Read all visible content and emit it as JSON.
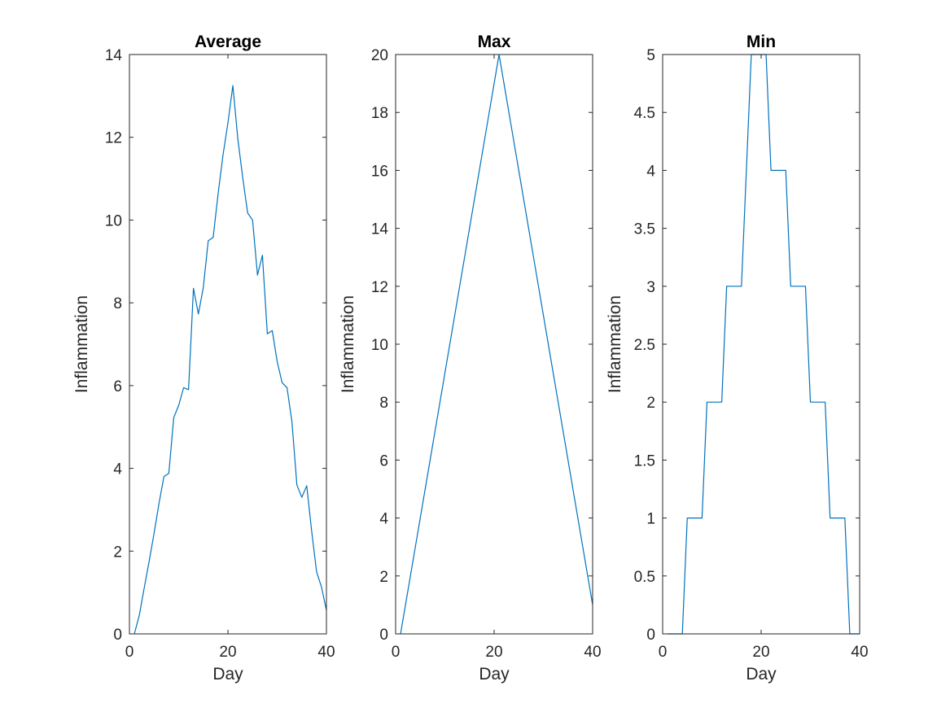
{
  "chart_data": [
    {
      "type": "line",
      "title": "Average",
      "xlabel": "Day",
      "ylabel": "Inflammation",
      "xlim": [
        0,
        40
      ],
      "ylim": [
        0,
        14
      ],
      "xticks": [
        "0",
        "20",
        "40"
      ],
      "yticks": [
        "0",
        "2",
        "4",
        "6",
        "8",
        "10",
        "12",
        "14"
      ],
      "grid": false,
      "color": "#0072BD",
      "series": [
        {
          "x": [
            1,
            2,
            3,
            4,
            5,
            6,
            7,
            8,
            9,
            10,
            11,
            12,
            13,
            14,
            15,
            16,
            17,
            18,
            19,
            20,
            21,
            22,
            23,
            24,
            25,
            26,
            27,
            28,
            29,
            30,
            31,
            32,
            33,
            34,
            35,
            36,
            37,
            38,
            39,
            40
          ],
          "values": [
            0,
            0.45,
            1.11,
            1.75,
            2.43,
            3.15,
            3.8,
            3.88,
            5.23,
            5.52,
            5.95,
            5.9,
            8.35,
            7.73,
            8.37,
            9.5,
            9.58,
            10.63,
            11.57,
            12.35,
            13.25,
            11.97,
            11.03,
            10.17,
            10.0,
            8.67,
            9.15,
            7.25,
            7.33,
            6.58,
            6.07,
            5.95,
            5.12,
            3.6,
            3.3,
            3.58,
            2.48,
            1.5,
            1.13,
            0.57
          ]
        }
      ]
    },
    {
      "type": "line",
      "title": "Max",
      "xlabel": "Day",
      "ylabel": "Inflammation",
      "xlim": [
        0,
        40
      ],
      "ylim": [
        0,
        20
      ],
      "xticks": [
        "0",
        "20",
        "40"
      ],
      "yticks": [
        "0",
        "2",
        "4",
        "6",
        "8",
        "10",
        "12",
        "14",
        "16",
        "18",
        "20"
      ],
      "grid": false,
      "color": "#0072BD",
      "series": [
        {
          "x": [
            1,
            2,
            3,
            4,
            5,
            6,
            7,
            8,
            9,
            10,
            11,
            12,
            13,
            14,
            15,
            16,
            17,
            18,
            19,
            20,
            21,
            22,
            23,
            24,
            25,
            26,
            27,
            28,
            29,
            30,
            31,
            32,
            33,
            34,
            35,
            36,
            37,
            38,
            39,
            40
          ],
          "values": [
            0,
            1,
            2,
            3,
            4,
            5,
            6,
            7,
            8,
            9,
            10,
            11,
            12,
            13,
            14,
            15,
            16,
            17,
            18,
            19,
            20,
            19,
            18,
            17,
            16,
            15,
            14,
            13,
            12,
            11,
            10,
            9,
            8,
            7,
            6,
            5,
            4,
            3,
            2,
            1
          ]
        }
      ]
    },
    {
      "type": "line",
      "title": "Min",
      "xlabel": "Day",
      "ylabel": "Inflammation",
      "xlim": [
        0,
        40
      ],
      "ylim": [
        0,
        5
      ],
      "xticks": [
        "0",
        "20",
        "40"
      ],
      "yticks": [
        "0",
        "0.5",
        "1",
        "1.5",
        "2",
        "2.5",
        "3",
        "3.5",
        "4",
        "4.5",
        "5"
      ],
      "grid": false,
      "color": "#0072BD",
      "series": [
        {
          "x": [
            1,
            2,
            3,
            4,
            5,
            6,
            7,
            8,
            9,
            10,
            11,
            12,
            13,
            14,
            15,
            16,
            17,
            18,
            19,
            20,
            21,
            22,
            23,
            24,
            25,
            26,
            27,
            28,
            29,
            30,
            31,
            32,
            33,
            34,
            35,
            36,
            37,
            38,
            39,
            40
          ],
          "values": [
            0,
            0,
            0,
            0,
            1,
            1,
            1,
            1,
            2,
            2,
            2,
            2,
            3,
            3,
            3,
            3,
            4,
            5,
            5,
            5,
            5,
            4,
            4,
            4,
            4,
            3,
            3,
            3,
            3,
            2,
            2,
            2,
            2,
            1,
            1,
            1,
            1,
            0,
            0,
            0
          ]
        }
      ]
    }
  ]
}
